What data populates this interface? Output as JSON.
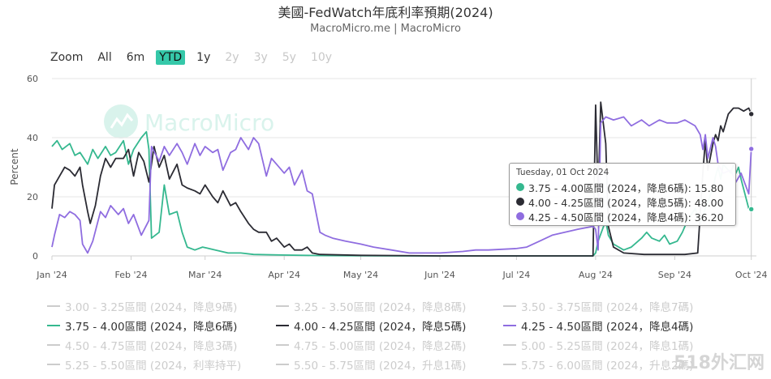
{
  "header": {
    "title": "美國-FedWatch年底利率預期(2024)",
    "subtitle": "MacroMicro.me | MacroMicro"
  },
  "range_selector": {
    "zoom_label": "Zoom",
    "buttons": [
      {
        "label": "All",
        "state": "normal"
      },
      {
        "label": "6m",
        "state": "normal"
      },
      {
        "label": "YTD",
        "state": "active"
      },
      {
        "label": "1y",
        "state": "normal"
      },
      {
        "label": "2y",
        "state": "disabled"
      },
      {
        "label": "3y",
        "state": "disabled"
      },
      {
        "label": "5y",
        "state": "disabled"
      },
      {
        "label": "10y",
        "state": "disabled"
      }
    ]
  },
  "watermark": {
    "text": "MacroMicro",
    "color": "#d9f3ec"
  },
  "corner_tag": "518外汇网",
  "tooltip": {
    "date": "Tuesday, 01 Oct 2024",
    "rows": [
      {
        "color": "#35b88f",
        "text": "3.75 - 4.00區間 (2024，降息6碼): 15.80"
      },
      {
        "color": "#2b2b33",
        "text": "4.00 - 4.25區間 (2024，降息5碼): 48.00"
      },
      {
        "color": "#8f6de0",
        "text": "4.25 - 4.50區間 (2024，降息4碼): 36.20"
      }
    ]
  },
  "legend": [
    {
      "label": "3.00 - 3.25區間 (2024，降息9碼)",
      "hidden": true
    },
    {
      "label": "3.25 - 3.50區間 (2024，降息8碼)",
      "hidden": true
    },
    {
      "label": "3.50 - 3.75區間 (2024，降息7碼)",
      "hidden": true
    },
    {
      "label": "3.75 - 4.00區間 (2024，降息6碼)",
      "hidden": false,
      "color": "#35b88f"
    },
    {
      "label": "4.00 - 4.25區間 (2024，降息5碼)",
      "hidden": false,
      "color": "#2b2b33"
    },
    {
      "label": "4.25 - 4.50區間 (2024，降息4碼)",
      "hidden": false,
      "color": "#8f6de0"
    },
    {
      "label": "4.50 - 4.75區間 (2024，降息3碼)",
      "hidden": true
    },
    {
      "label": "4.75 - 5.00區間 (2024，降息2碼)",
      "hidden": true
    },
    {
      "label": "5.00 - 5.25區間 (2024，降息1碼)",
      "hidden": true
    },
    {
      "label": "5.25 - 5.50區間 (2024，利率持平)",
      "hidden": true
    },
    {
      "label": "5.50 - 5.75區間 (2024，升息1碼)",
      "hidden": true
    },
    {
      "label": "5.75 - 6.00區間 (2024，升息2碼)",
      "hidden": true
    }
  ],
  "chart_data": {
    "type": "line",
    "ylabel": "Percent",
    "ylim": [
      0,
      60
    ],
    "yticks": [
      0,
      20,
      40,
      60
    ],
    "xlim": [
      "2024-01-01",
      "2024-10-03"
    ],
    "xticks": [
      {
        "date": "2024-01-01",
        "label": "Jan '24"
      },
      {
        "date": "2024-02-01",
        "label": "Feb '24"
      },
      {
        "date": "2024-03-01",
        "label": "Mar '24"
      },
      {
        "date": "2024-04-01",
        "label": "Apr '24"
      },
      {
        "date": "2024-05-01",
        "label": "May '24"
      },
      {
        "date": "2024-06-01",
        "label": "Jun '24"
      },
      {
        "date": "2024-07-01",
        "label": "Jul '24"
      },
      {
        "date": "2024-08-01",
        "label": "Aug '24"
      },
      {
        "date": "2024-09-01",
        "label": "Sep '24"
      },
      {
        "date": "2024-10-01",
        "label": "Oct '24"
      }
    ],
    "grid": "horizontal",
    "crosshair_date": "2024-10-01",
    "series": [
      {
        "name": "3.75 - 4.00區間 (2024，降息6碼)",
        "color": "#35b88f",
        "points": [
          [
            "2024-01-01",
            37
          ],
          [
            "2024-01-03",
            39
          ],
          [
            "2024-01-05",
            36
          ],
          [
            "2024-01-08",
            38
          ],
          [
            "2024-01-10",
            34
          ],
          [
            "2024-01-12",
            35
          ],
          [
            "2024-01-15",
            31
          ],
          [
            "2024-01-17",
            36
          ],
          [
            "2024-01-19",
            33
          ],
          [
            "2024-01-22",
            37
          ],
          [
            "2024-01-24",
            34
          ],
          [
            "2024-01-26",
            35
          ],
          [
            "2024-01-29",
            39
          ],
          [
            "2024-01-31",
            31
          ],
          [
            "2024-02-02",
            36
          ],
          [
            "2024-02-05",
            40
          ],
          [
            "2024-02-07",
            42
          ],
          [
            "2024-02-08",
            36
          ],
          [
            "2024-02-09",
            6
          ],
          [
            "2024-02-12",
            8
          ],
          [
            "2024-02-14",
            24
          ],
          [
            "2024-02-16",
            14
          ],
          [
            "2024-02-19",
            15
          ],
          [
            "2024-02-21",
            8
          ],
          [
            "2024-02-23",
            3
          ],
          [
            "2024-02-26",
            2
          ],
          [
            "2024-02-29",
            3
          ],
          [
            "2024-03-05",
            2
          ],
          [
            "2024-03-10",
            1
          ],
          [
            "2024-03-15",
            1
          ],
          [
            "2024-03-20",
            0.5
          ],
          [
            "2024-03-31",
            0.3
          ],
          [
            "2024-04-15",
            0.1
          ],
          [
            "2024-05-15",
            0
          ],
          [
            "2024-06-15",
            0
          ],
          [
            "2024-07-15",
            0
          ],
          [
            "2024-07-31",
            0
          ],
          [
            "2024-08-01",
            1
          ],
          [
            "2024-08-02",
            5
          ],
          [
            "2024-08-05",
            12
          ],
          [
            "2024-08-06",
            7
          ],
          [
            "2024-08-08",
            4
          ],
          [
            "2024-08-12",
            2
          ],
          [
            "2024-08-15",
            3
          ],
          [
            "2024-08-19",
            6
          ],
          [
            "2024-08-21",
            8
          ],
          [
            "2024-08-23",
            6
          ],
          [
            "2024-08-26",
            5
          ],
          [
            "2024-08-28",
            7
          ],
          [
            "2024-08-30",
            4
          ],
          [
            "2024-09-02",
            5
          ],
          [
            "2024-09-04",
            8
          ],
          [
            "2024-09-06",
            12
          ],
          [
            "2024-09-09",
            16
          ],
          [
            "2024-09-11",
            11
          ],
          [
            "2024-09-13",
            16
          ],
          [
            "2024-09-16",
            23
          ],
          [
            "2024-09-17",
            27
          ],
          [
            "2024-09-18",
            30
          ],
          [
            "2024-09-19",
            26
          ],
          [
            "2024-09-20",
            31
          ],
          [
            "2024-09-23",
            28
          ],
          [
            "2024-09-24",
            31
          ],
          [
            "2024-09-25",
            28
          ],
          [
            "2024-09-26",
            30
          ],
          [
            "2024-09-27",
            26
          ],
          [
            "2024-09-30",
            16
          ],
          [
            "2024-10-01",
            15.8
          ],
          [
            "2024-10-02",
            15.8
          ]
        ]
      },
      {
        "name": "4.00 - 4.25區間 (2024，降息5碼)",
        "color": "#2b2b33",
        "points": [
          [
            "2024-01-01",
            16
          ],
          [
            "2024-01-02",
            24
          ],
          [
            "2024-01-04",
            27
          ],
          [
            "2024-01-06",
            30
          ],
          [
            "2024-01-08",
            29
          ],
          [
            "2024-01-10",
            27
          ],
          [
            "2024-01-12",
            30
          ],
          [
            "2024-01-13",
            24
          ],
          [
            "2024-01-15",
            15
          ],
          [
            "2024-01-16",
            11
          ],
          [
            "2024-01-18",
            17
          ],
          [
            "2024-01-20",
            27
          ],
          [
            "2024-01-22",
            33
          ],
          [
            "2024-01-24",
            30
          ],
          [
            "2024-01-26",
            33
          ],
          [
            "2024-01-29",
            33
          ],
          [
            "2024-01-31",
            36
          ],
          [
            "2024-02-02",
            27
          ],
          [
            "2024-02-04",
            35
          ],
          [
            "2024-02-06",
            32
          ],
          [
            "2024-02-08",
            25
          ],
          [
            "2024-02-10",
            37
          ],
          [
            "2024-02-12",
            30
          ],
          [
            "2024-02-14",
            34
          ],
          [
            "2024-02-16",
            26
          ],
          [
            "2024-02-19",
            31
          ],
          [
            "2024-02-21",
            24
          ],
          [
            "2024-02-23",
            23
          ],
          [
            "2024-02-26",
            22
          ],
          [
            "2024-02-28",
            21
          ],
          [
            "2024-03-01",
            24
          ],
          [
            "2024-03-04",
            20
          ],
          [
            "2024-03-06",
            18
          ],
          [
            "2024-03-08",
            22
          ],
          [
            "2024-03-11",
            17
          ],
          [
            "2024-03-13",
            18
          ],
          [
            "2024-03-15",
            15
          ],
          [
            "2024-03-18",
            11
          ],
          [
            "2024-03-20",
            9
          ],
          [
            "2024-03-22",
            8
          ],
          [
            "2024-03-25",
            8
          ],
          [
            "2024-03-27",
            5
          ],
          [
            "2024-03-29",
            6
          ],
          [
            "2024-04-01",
            3
          ],
          [
            "2024-04-03",
            4
          ],
          [
            "2024-04-05",
            2
          ],
          [
            "2024-04-08",
            2
          ],
          [
            "2024-04-10",
            3
          ],
          [
            "2024-04-12",
            1
          ],
          [
            "2024-04-15",
            0.5
          ],
          [
            "2024-05-01",
            0.2
          ],
          [
            "2024-06-01",
            0
          ],
          [
            "2024-07-01",
            0
          ],
          [
            "2024-07-31",
            0
          ],
          [
            "2024-08-01",
            51
          ],
          [
            "2024-08-02",
            20
          ],
          [
            "2024-08-03",
            52
          ],
          [
            "2024-08-05",
            38
          ],
          [
            "2024-08-06",
            10
          ],
          [
            "2024-08-08",
            3
          ],
          [
            "2024-08-12",
            1
          ],
          [
            "2024-08-20",
            0.5
          ],
          [
            "2024-08-31",
            0.5
          ],
          [
            "2024-09-05",
            0.5
          ],
          [
            "2024-09-10",
            1
          ],
          [
            "2024-09-12",
            28
          ],
          [
            "2024-09-13",
            39
          ],
          [
            "2024-09-14",
            29
          ],
          [
            "2024-09-16",
            38
          ],
          [
            "2024-09-17",
            41
          ],
          [
            "2024-09-18",
            39
          ],
          [
            "2024-09-19",
            44
          ],
          [
            "2024-09-20",
            42
          ],
          [
            "2024-09-22",
            48
          ],
          [
            "2024-09-24",
            50
          ],
          [
            "2024-09-26",
            50
          ],
          [
            "2024-09-28",
            49
          ],
          [
            "2024-09-30",
            50
          ],
          [
            "2024-10-01",
            48
          ],
          [
            "2024-10-02",
            48
          ]
        ]
      },
      {
        "name": "4.25 - 4.50區間 (2024，降息4碼)",
        "color": "#8f6de0",
        "points": [
          [
            "2024-01-01",
            3
          ],
          [
            "2024-01-02",
            7
          ],
          [
            "2024-01-04",
            14
          ],
          [
            "2024-01-06",
            13
          ],
          [
            "2024-01-08",
            15
          ],
          [
            "2024-01-10",
            14
          ],
          [
            "2024-01-12",
            12
          ],
          [
            "2024-01-13",
            4
          ],
          [
            "2024-01-15",
            1
          ],
          [
            "2024-01-17",
            5
          ],
          [
            "2024-01-20",
            15
          ],
          [
            "2024-01-22",
            13
          ],
          [
            "2024-01-24",
            17
          ],
          [
            "2024-01-27",
            14
          ],
          [
            "2024-01-29",
            16
          ],
          [
            "2024-01-31",
            11
          ],
          [
            "2024-02-02",
            14
          ],
          [
            "2024-02-05",
            7
          ],
          [
            "2024-02-08",
            12
          ],
          [
            "2024-02-09",
            37
          ],
          [
            "2024-02-12",
            32
          ],
          [
            "2024-02-14",
            37
          ],
          [
            "2024-02-16",
            34
          ],
          [
            "2024-02-19",
            38
          ],
          [
            "2024-02-21",
            35
          ],
          [
            "2024-02-23",
            31
          ],
          [
            "2024-02-26",
            38
          ],
          [
            "2024-02-28",
            34
          ],
          [
            "2024-03-01",
            37
          ],
          [
            "2024-03-04",
            35
          ],
          [
            "2024-03-06",
            36
          ],
          [
            "2024-03-08",
            29
          ],
          [
            "2024-03-11",
            35
          ],
          [
            "2024-03-13",
            36
          ],
          [
            "2024-03-15",
            40
          ],
          [
            "2024-03-18",
            36
          ],
          [
            "2024-03-20",
            40
          ],
          [
            "2024-03-22",
            38
          ],
          [
            "2024-03-25",
            27
          ],
          [
            "2024-03-27",
            33
          ],
          [
            "2024-03-29",
            31
          ],
          [
            "2024-04-01",
            28
          ],
          [
            "2024-04-03",
            30
          ],
          [
            "2024-04-05",
            24
          ],
          [
            "2024-04-08",
            29
          ],
          [
            "2024-04-10",
            22
          ],
          [
            "2024-04-12",
            21
          ],
          [
            "2024-04-15",
            8
          ],
          [
            "2024-04-17",
            7
          ],
          [
            "2024-04-20",
            6
          ],
          [
            "2024-04-25",
            5
          ],
          [
            "2024-05-01",
            4
          ],
          [
            "2024-05-06",
            3
          ],
          [
            "2024-05-13",
            2
          ],
          [
            "2024-05-20",
            1
          ],
          [
            "2024-06-01",
            1
          ],
          [
            "2024-06-10",
            1.5
          ],
          [
            "2024-06-15",
            2
          ],
          [
            "2024-06-20",
            2
          ],
          [
            "2024-07-01",
            2.5
          ],
          [
            "2024-07-05",
            3
          ],
          [
            "2024-07-10",
            5
          ],
          [
            "2024-07-15",
            7
          ],
          [
            "2024-07-20",
            8
          ],
          [
            "2024-07-25",
            9
          ],
          [
            "2024-07-31",
            10
          ],
          [
            "2024-08-01",
            9
          ],
          [
            "2024-08-02",
            2
          ],
          [
            "2024-08-03",
            45
          ],
          [
            "2024-08-05",
            47
          ],
          [
            "2024-08-08",
            46
          ],
          [
            "2024-08-12",
            47
          ],
          [
            "2024-08-15",
            44
          ],
          [
            "2024-08-19",
            46
          ],
          [
            "2024-08-22",
            44
          ],
          [
            "2024-08-26",
            46
          ],
          [
            "2024-08-29",
            45
          ],
          [
            "2024-09-02",
            45
          ],
          [
            "2024-09-05",
            46
          ],
          [
            "2024-09-09",
            44
          ],
          [
            "2024-09-11",
            41
          ],
          [
            "2024-09-12",
            36
          ],
          [
            "2024-09-13",
            41
          ],
          [
            "2024-09-14",
            33
          ],
          [
            "2024-09-16",
            40
          ],
          [
            "2024-09-17",
            37
          ],
          [
            "2024-09-18",
            31
          ],
          [
            "2024-09-20",
            28
          ],
          [
            "2024-09-23",
            29
          ],
          [
            "2024-09-25",
            25
          ],
          [
            "2024-09-27",
            28
          ],
          [
            "2024-09-30",
            21
          ],
          [
            "2024-10-01",
            36.2
          ],
          [
            "2024-10-02",
            36.2
          ]
        ]
      }
    ]
  }
}
